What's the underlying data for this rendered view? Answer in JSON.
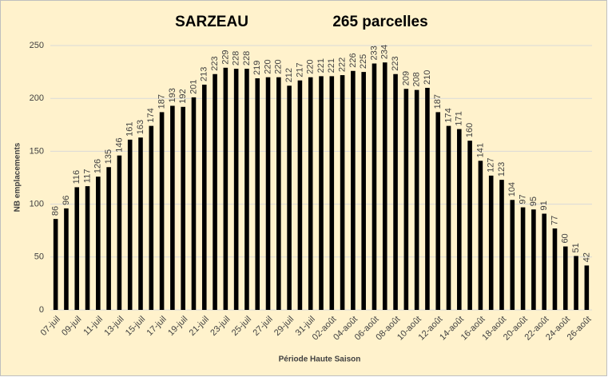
{
  "chart_data": {
    "type": "bar",
    "title": "SARZEAU",
    "subtitle": "265 parcelles",
    "x_label": "Période Haute Saison",
    "y_label": "NB emplacements",
    "categories": [
      "07-juil",
      null,
      "09-juil",
      null,
      "11-juil",
      null,
      "13-juil",
      null,
      "15-juil",
      null,
      "17-juil",
      null,
      "19-juil",
      null,
      "21-juil",
      null,
      "23-juil",
      null,
      "25-juil",
      null,
      "27-juil",
      null,
      "29-juil",
      null,
      "31-juil",
      null,
      "02-août",
      null,
      "04-août",
      null,
      "06-août",
      null,
      "08-août",
      null,
      "10-août",
      null,
      "12-août",
      null,
      "14-août",
      null,
      "16-août",
      null,
      "18-août",
      null,
      "20-août",
      null,
      "22-août",
      null,
      "24-août",
      null,
      "26-août"
    ],
    "values": [
      86,
      96,
      116,
      117,
      126,
      135,
      146,
      161,
      163,
      174,
      187,
      193,
      192,
      201,
      213,
      223,
      229,
      228,
      228,
      219,
      220,
      220,
      212,
      217,
      220,
      221,
      221,
      222,
      226,
      225,
      233,
      234,
      223,
      209,
      208,
      210,
      187,
      174,
      171,
      160,
      141,
      127,
      123,
      104,
      97,
      95,
      91,
      77,
      60,
      51,
      42
    ],
    "color": "#000000",
    "background": "#fff2cc",
    "ylim": [
      0,
      250
    ],
    "yticks": [
      0,
      50,
      100,
      150,
      200,
      250
    ],
    "grid": true
  }
}
